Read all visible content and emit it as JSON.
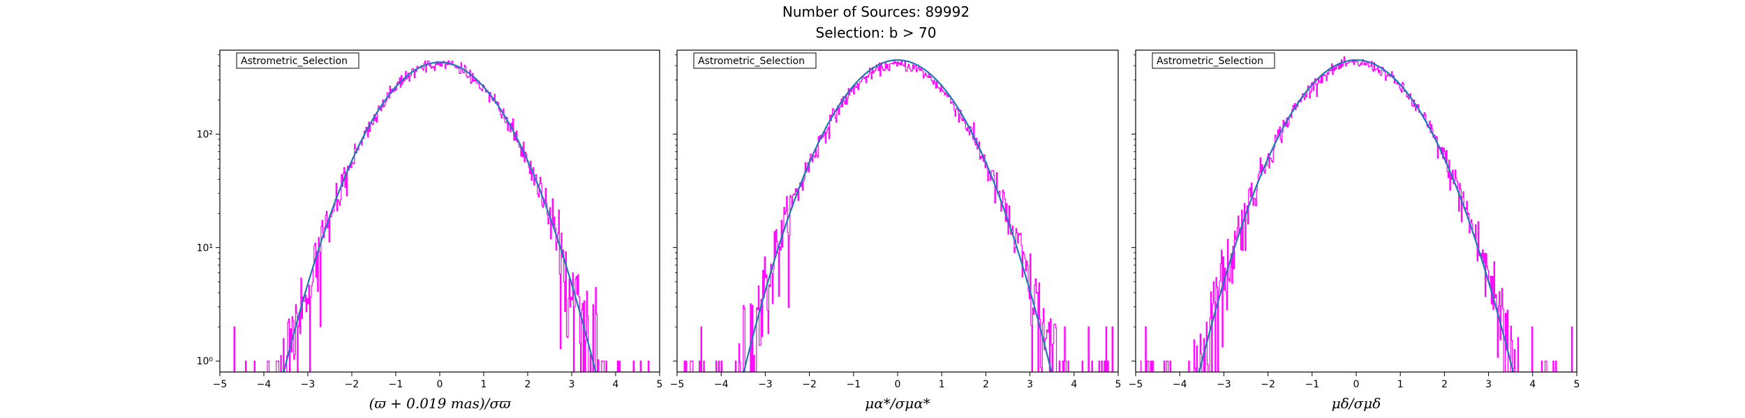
{
  "figure": {
    "title_line1": "Number of Sources: 89992",
    "title_line2": "Selection: b > 70"
  },
  "colors": {
    "histogram": "#ff00ff",
    "model_curve": "#1f77b4",
    "axes": "#000000"
  },
  "chart_data": [
    {
      "type": "line",
      "legend_text": "Astrometric_Selection",
      "legend_position": "top-left",
      "xlabel": "(ϖ + 0.019 mas)/σϖ",
      "ylabel": "",
      "xlim": [
        -5,
        5
      ],
      "ylim": [
        0.8,
        550
      ],
      "yscale": "log",
      "x_ticks": [
        -5,
        -4,
        -3,
        -2,
        -1,
        0,
        1,
        2,
        3,
        4,
        5
      ],
      "y_ticks": [
        1,
        10,
        100
      ],
      "y_tick_labels": [
        "10⁰",
        "10¹",
        "10²"
      ],
      "grid": false,
      "model": {
        "shape": "gaussian",
        "peak": 430,
        "mean": 0,
        "sigma": 1.0
      },
      "histogram": {
        "bin_width": 0.02,
        "range": [
          -4.8,
          4.8
        ],
        "peak": 420,
        "sigma": 1.0
      }
    },
    {
      "type": "line",
      "legend_text": "Astrometric_Selection",
      "legend_position": "top-left",
      "xlabel": "μα*/σμα*",
      "ylabel": "",
      "xlim": [
        -5,
        5
      ],
      "ylim": [
        0.8,
        550
      ],
      "yscale": "log",
      "x_ticks": [
        -5,
        -4,
        -3,
        -2,
        -1,
        0,
        1,
        2,
        3,
        4,
        5
      ],
      "y_ticks": [
        1,
        10,
        100
      ],
      "y_tick_labels": [
        "",
        "",
        ""
      ],
      "grid": false,
      "model": {
        "shape": "gaussian",
        "peak": 450,
        "mean": 0,
        "sigma": 0.98
      },
      "histogram": {
        "bin_width": 0.02,
        "range": [
          -4.9,
          4.9
        ],
        "peak": 410,
        "sigma": 1.0
      }
    },
    {
      "type": "line",
      "legend_text": "Astrometric_Selection",
      "legend_position": "top-left",
      "xlabel": "μδ/σμδ",
      "ylabel": "",
      "xlim": [
        -5,
        5
      ],
      "ylim": [
        0.8,
        550
      ],
      "yscale": "log",
      "x_ticks": [
        -5,
        -4,
        -3,
        -2,
        -1,
        0,
        1,
        2,
        3,
        4,
        5
      ],
      "y_ticks": [
        1,
        10,
        100
      ],
      "y_tick_labels": [
        "",
        "",
        ""
      ],
      "grid": false,
      "model": {
        "shape": "gaussian",
        "peak": 450,
        "mean": 0,
        "sigma": 1.0
      },
      "histogram": {
        "bin_width": 0.02,
        "range": [
          -4.9,
          4.9
        ],
        "peak": 425,
        "sigma": 1.02
      }
    }
  ]
}
